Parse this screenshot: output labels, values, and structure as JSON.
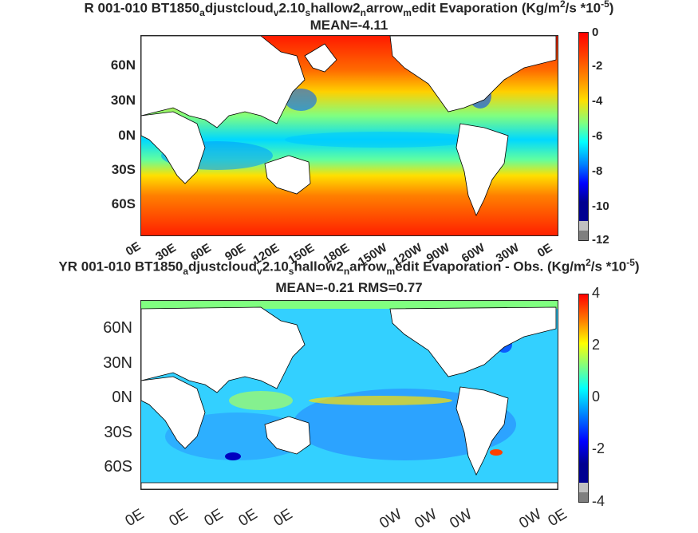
{
  "panel1": {
    "title_parts": [
      "R 001-010 BT1850",
      "a",
      "djustcloud",
      "v",
      "2.10",
      "s",
      "hallow2",
      "n",
      "arrow",
      "m",
      "edit  Evaporation (Kg/m",
      "2",
      "/s *10",
      "-5",
      ")"
    ],
    "subtitle": "MEAN=-4.11",
    "lat_labels": [
      "60N",
      "30N",
      "0N",
      "30S",
      "60S"
    ],
    "lon_labels": [
      "0E",
      "30E",
      "60E",
      "90E",
      "120E",
      "150E",
      "180E",
      "150W",
      "120W",
      "90W",
      "60W",
      "30W",
      "0E"
    ],
    "colorbar_ticks": [
      "0",
      "-2",
      "-4",
      "-6",
      "-8",
      "-10",
      "-12"
    ],
    "colorbar_range": [
      -12,
      0
    ]
  },
  "panel2": {
    "title_parts": [
      "YR 001-010 BT1850",
      "a",
      "djustcloud",
      "v",
      "2.10",
      "s",
      "hallow2",
      "n",
      "arrow",
      "m",
      "edit Evaporation - Obs. (Kg/m",
      "2",
      "/s *10",
      "-5",
      ")"
    ],
    "subtitle": "MEAN=-0.21   RMS=0.77",
    "lat_labels": [
      "60N",
      "30N",
      "0N",
      "30S",
      "60S"
    ],
    "lon_labels": [
      "0E",
      "0E",
      "0E",
      "0E",
      "0E",
      "0W",
      "0W",
      "0W",
      "0W",
      "0E"
    ],
    "colorbar_ticks": [
      "4",
      "2",
      "0",
      "-2",
      "-4"
    ],
    "colorbar_range": [
      -4,
      4
    ]
  },
  "colors": {
    "jet": [
      "#800000",
      "#ff0000",
      "#ff8000",
      "#ffff00",
      "#80ff80",
      "#00ffff",
      "#0080ff",
      "#0000ff",
      "#000080"
    ],
    "land": "#ffffff",
    "missing": "#7f7f7f"
  }
}
